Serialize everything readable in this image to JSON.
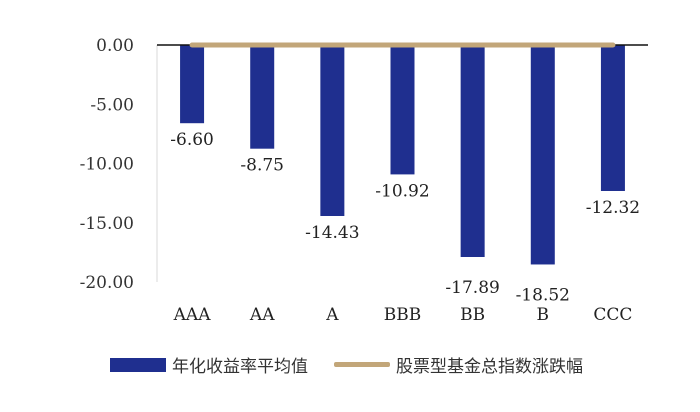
{
  "chart_data": {
    "type": "bar",
    "categories": [
      "AAA",
      "AA",
      "A",
      "BBB",
      "BB",
      "B",
      "CCC"
    ],
    "series": [
      {
        "name": "年化收益率平均值",
        "kind": "bar",
        "color": "#1f2f8f",
        "values": [
          -6.6,
          -8.75,
          -14.43,
          -10.92,
          -17.89,
          -18.52,
          -12.32
        ],
        "labels": [
          "-6.60",
          "-8.75",
          "-14.43",
          "-10.92",
          "-17.89",
          "-18.52",
          "-12.32"
        ]
      },
      {
        "name": "股票型基金总指数涨跌幅",
        "kind": "line",
        "color": "#c2a679",
        "values": [
          0,
          0,
          0,
          0,
          0,
          0,
          0
        ]
      }
    ],
    "ylim": [
      -20,
      0
    ],
    "yticks": [
      "0.00",
      "-5.00",
      "-10.00",
      "-15.00",
      "-20.00"
    ],
    "legend_position": "bottom",
    "grid": false
  }
}
